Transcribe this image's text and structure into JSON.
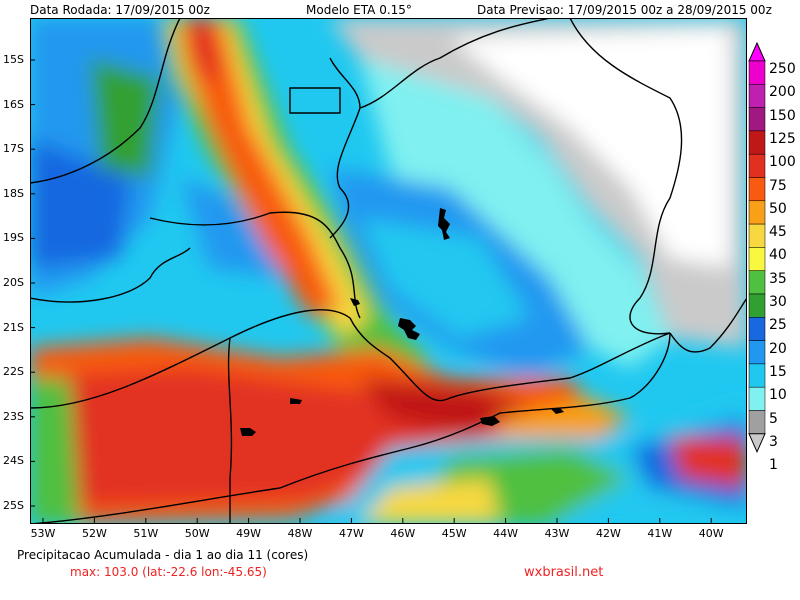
{
  "header": {
    "run_label": "Data Rodada: 17/09/2015 00z",
    "model_label": "Modelo ETA 0.15°",
    "forecast_label": "Data Previsao: 17/09/2015 00z a 28/09/2015 00z"
  },
  "map": {
    "lat_labels": [
      "15S",
      "16S",
      "17S",
      "18S",
      "19S",
      "20S",
      "21S",
      "22S",
      "23S",
      "24S",
      "25S"
    ],
    "lon_labels": [
      "53W",
      "52W",
      "51W",
      "50W",
      "49W",
      "48W",
      "47W",
      "46W",
      "45W",
      "44W",
      "43W",
      "42W",
      "41W",
      "40W"
    ]
  },
  "colorbar": {
    "levels": [
      "250",
      "200",
      "150",
      "125",
      "100",
      "75",
      "50",
      "45",
      "40",
      "35",
      "30",
      "25",
      "20",
      "15",
      "10",
      "5",
      "3",
      "1"
    ],
    "colors": [
      "#ff00ff",
      "#ee00cc",
      "#c020b0",
      "#a01880",
      "#c01818",
      "#e23020",
      "#f85a10",
      "#f8a018",
      "#f8d840",
      "#f8f840",
      "#50c040",
      "#30a030",
      "#1868e0",
      "#2098f0",
      "#20c8f0",
      "#80f0f0",
      "#a0a0a0",
      "#cacaca"
    ]
  },
  "footer": {
    "caption": "Precipitacao Acumulada - dia 1 ao dia 11 (cores)",
    "max_info": "max: 103.0 (lat:-22.6 lon:-45.65)",
    "credit": "wxbrasil.net"
  }
}
